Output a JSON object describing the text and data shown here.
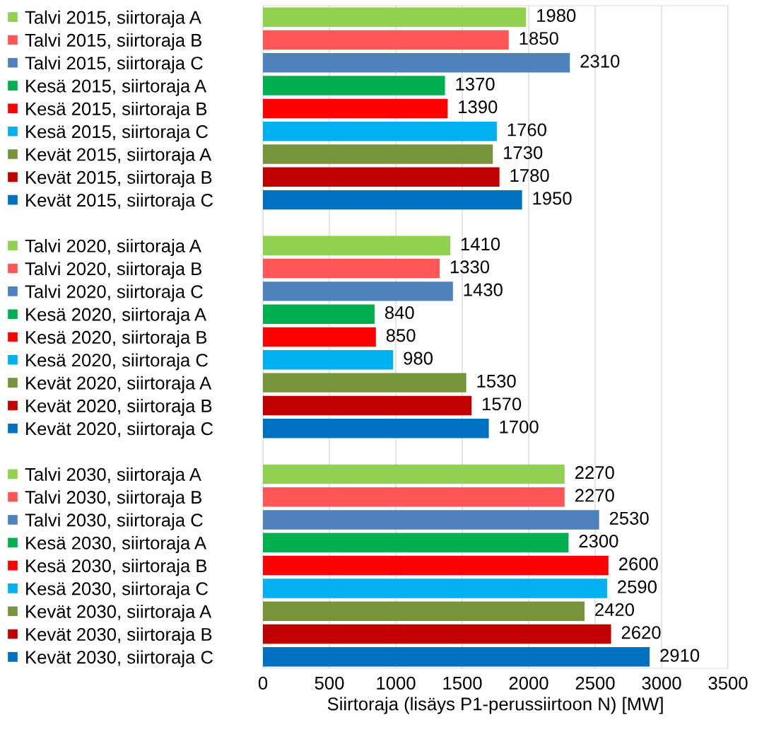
{
  "chart_data": {
    "type": "bar",
    "orientation": "horizontal",
    "xlabel": "Siirtoraja (lisäys P1-perussiirtoon N) [MW]",
    "categories": [
      "Talvi 2015, siirtoraja A",
      "Talvi 2015, siirtoraja B",
      "Talvi 2015, siirtoraja C",
      "Kesä 2015, siirtoraja A",
      "Kesä 2015, siirtoraja B",
      "Kesä 2015, siirtoraja C",
      "Kevät 2015, siirtoraja A",
      "Kevät 2015, siirtoraja B",
      "Kevät 2015, siirtoraja C",
      null,
      "Talvi 2020, siirtoraja A",
      "Talvi 2020, siirtoraja B",
      "Talvi 2020, siirtoraja C",
      "Kesä 2020, siirtoraja A",
      "Kesä 2020, siirtoraja B",
      "Kesä 2020, siirtoraja C",
      "Kevät 2020, siirtoraja A",
      "Kevät 2020, siirtoraja B",
      "Kevät 2020, siirtoraja C",
      null,
      "Talvi 2030, siirtoraja A",
      "Talvi 2030, siirtoraja B",
      "Talvi 2030, siirtoraja C",
      "Kesä 2030, siirtoraja A",
      "Kesä 2030, siirtoraja B",
      "Kesä 2030, siirtoraja C",
      "Kevät 2030, siirtoraja A",
      "Kevät 2030, siirtoraja B",
      "Kevät 2030, siirtoraja C"
    ],
    "values": [
      1980,
      1850,
      2310,
      1370,
      1390,
      1760,
      1730,
      1780,
      1950,
      null,
      1410,
      1330,
      1430,
      840,
      850,
      980,
      1530,
      1570,
      1700,
      null,
      2270,
      2270,
      2530,
      2300,
      2600,
      2590,
      2420,
      2620,
      2910
    ],
    "colors": [
      "#92d050",
      "#ff5757",
      "#4f81bd",
      "#00b050",
      "#ff0000",
      "#00b0f0",
      "#77933c",
      "#c00000",
      "#0070c0",
      null,
      "#92d050",
      "#ff5757",
      "#4f81bd",
      "#00b050",
      "#ff0000",
      "#00b0f0",
      "#77933c",
      "#c00000",
      "#0070c0",
      null,
      "#92d050",
      "#ff5757",
      "#4f81bd",
      "#00b050",
      "#ff0000",
      "#00b0f0",
      "#77933c",
      "#c00000",
      "#0070c0"
    ],
    "xlim": [
      0,
      3500
    ],
    "xticks": [
      0,
      500,
      1000,
      1500,
      2000,
      2500,
      3000,
      3500
    ],
    "grid": "x",
    "data_labels": true
  }
}
